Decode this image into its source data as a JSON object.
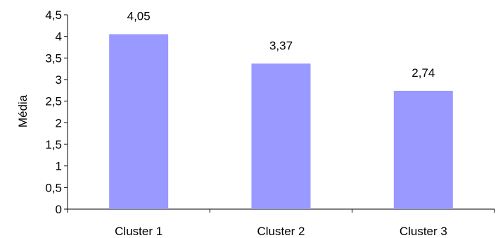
{
  "chart_data": {
    "type": "bar",
    "categories": [
      "Cluster 1",
      "Cluster 2",
      "Cluster 3"
    ],
    "values": [
      4.05,
      3.37,
      2.74
    ],
    "data_labels": [
      "4,05",
      "3,37",
      "2,74"
    ],
    "title": "",
    "xlabel": "",
    "ylabel": "Média",
    "ylim": [
      0,
      4.5
    ],
    "y_ticks": [
      0,
      0.5,
      1,
      1.5,
      2,
      2.5,
      3,
      3.5,
      4,
      4.5
    ],
    "y_tick_labels": [
      "0",
      "0,5",
      "1",
      "1,5",
      "2",
      "2,5",
      "3",
      "3,5",
      "4",
      "4,5"
    ],
    "grid": false,
    "legend": "none",
    "colors": {
      "bar": "#9999ff",
      "axis": "#000000",
      "background": "#ffffff"
    }
  }
}
